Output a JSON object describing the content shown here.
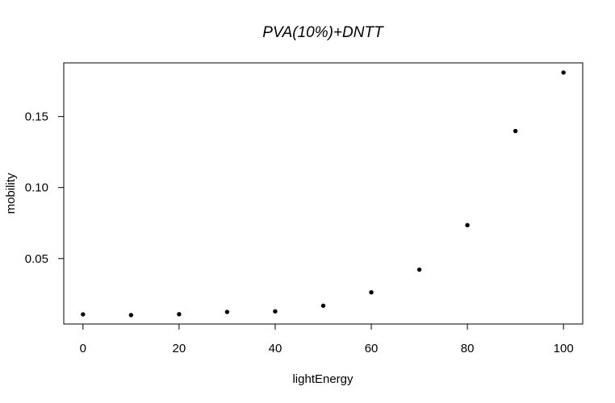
{
  "chart_data": {
    "type": "scatter",
    "title": "PVA(10%)+DNTT",
    "xlabel": "lightEnergy",
    "ylabel": "mobility",
    "x": [
      0,
      10,
      20,
      30,
      40,
      50,
      60,
      70,
      80,
      90,
      100
    ],
    "y": [
      0.0107,
      0.0102,
      0.0108,
      0.0124,
      0.0128,
      0.0168,
      0.0262,
      0.0422,
      0.0735,
      0.1398,
      0.181
    ],
    "xlim": [
      -4,
      104
    ],
    "ylim": [
      0.0039,
      0.1878
    ],
    "xticks": [
      0,
      20,
      40,
      60,
      80,
      100
    ],
    "xtick_labels": [
      "0",
      "20",
      "40",
      "60",
      "80",
      "100"
    ],
    "yticks": [
      0.05,
      0.1,
      0.15
    ],
    "ytick_labels": [
      "0.05",
      "0.10",
      "0.15"
    ],
    "grid": false,
    "legend": "none",
    "point_color": "#000000"
  }
}
